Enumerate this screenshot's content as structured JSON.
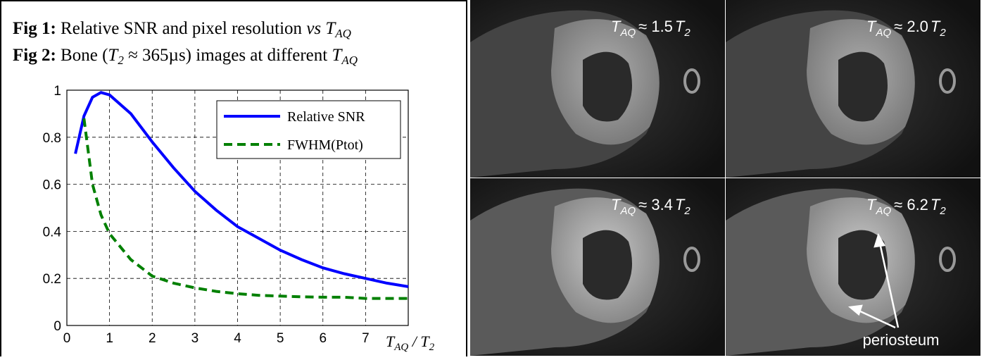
{
  "captions": [
    {
      "label": "Fig 1:",
      "text": "Relative SNR and pixel resolution",
      "vs": "vs",
      "var": "T",
      "sub": "AQ"
    },
    {
      "label": "Fig 2:",
      "text": "Bone (",
      "var": "T",
      "sub": "2",
      "rest": "≈ 365µs) images at different",
      "var2": "T",
      "sub2": "AQ"
    }
  ],
  "chart_data": {
    "type": "line",
    "x": [
      0.2,
      0.4,
      0.6,
      0.8,
      1,
      1.5,
      2,
      2.5,
      3,
      3.5,
      4,
      4.5,
      5,
      5.5,
      6,
      6.5,
      7,
      7.5,
      8
    ],
    "series": [
      {
        "name": "Relative SNR",
        "color": "#0000ff",
        "dash": false,
        "values": [
          0.73,
          0.89,
          0.97,
          0.99,
          0.98,
          0.9,
          0.78,
          0.67,
          0.57,
          0.49,
          0.42,
          0.37,
          0.32,
          0.28,
          0.245,
          0.22,
          0.2,
          0.18,
          0.165
        ]
      },
      {
        "name": "FWHM(Ptot)",
        "color": "#008000",
        "dash": true,
        "values": [
          null,
          0.88,
          0.6,
          0.47,
          0.39,
          0.28,
          0.21,
          0.18,
          0.16,
          0.145,
          0.135,
          0.128,
          0.125,
          0.122,
          0.12,
          0.12,
          0.115,
          0.115,
          0.115
        ]
      }
    ],
    "xlim": [
      0,
      8
    ],
    "xticks": [
      0,
      1,
      2,
      3,
      4,
      5,
      6,
      7
    ],
    "ylim": [
      0,
      1
    ],
    "yticks": [
      0,
      0.2,
      0.4,
      0.6,
      0.8,
      1
    ],
    "grid": true,
    "legend": "upper right",
    "xlabel": {
      "t": "T",
      "aq": "AQ",
      "slash": "/",
      "t2": "T",
      "two": "2"
    }
  },
  "images": [
    {
      "t": "T",
      "aq": "AQ",
      "approx": "≈ 1.5",
      "t2": "T",
      "two": "2"
    },
    {
      "t": "T",
      "aq": "AQ",
      "approx": "≈ 2.0",
      "t2": "T",
      "two": "2"
    },
    {
      "t": "T",
      "aq": "AQ",
      "approx": "≈ 3.4",
      "t2": "T",
      "two": "2"
    },
    {
      "t": "T",
      "aq": "AQ",
      "approx": "≈ 6.2",
      "t2": "T",
      "two": "2"
    }
  ],
  "annotation": "periosteum"
}
